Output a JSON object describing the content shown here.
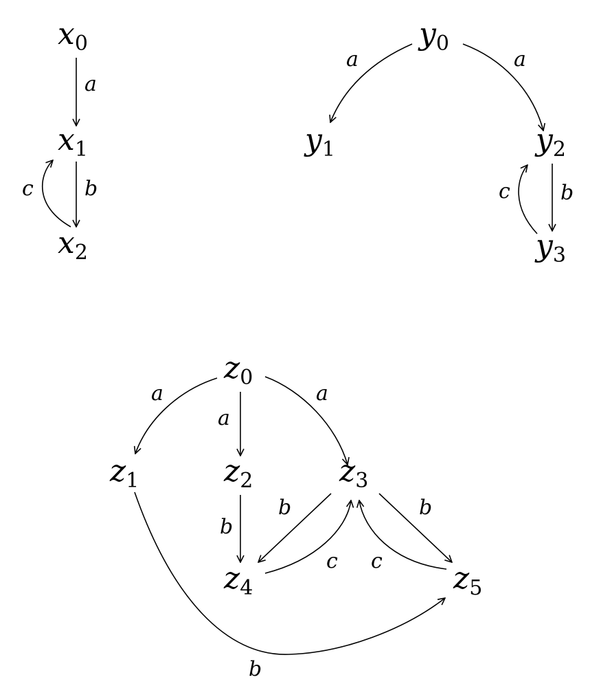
{
  "nodes": [
    {
      "id": "x0",
      "base": "x",
      "sub": "0"
    },
    {
      "id": "x1",
      "base": "x",
      "sub": "1"
    },
    {
      "id": "x2",
      "base": "x",
      "sub": "2"
    },
    {
      "id": "y0",
      "base": "y",
      "sub": "0"
    },
    {
      "id": "y1",
      "base": "y",
      "sub": "1"
    },
    {
      "id": "y2",
      "base": "y",
      "sub": "2"
    },
    {
      "id": "y3",
      "base": "y",
      "sub": "3"
    },
    {
      "id": "z0",
      "base": "z",
      "sub": "0"
    },
    {
      "id": "z1",
      "base": "z",
      "sub": "1"
    },
    {
      "id": "z2",
      "base": "z",
      "sub": "2"
    },
    {
      "id": "z3",
      "base": "z",
      "sub": "3"
    },
    {
      "id": "z4",
      "base": "z",
      "sub": "4"
    },
    {
      "id": "z5",
      "base": "z",
      "sub": "5"
    }
  ],
  "edges": [
    {
      "from": "x0",
      "to": "x1",
      "label": "a"
    },
    {
      "from": "x1",
      "to": "x2",
      "label": "b"
    },
    {
      "from": "x2",
      "to": "x1",
      "label": "c"
    },
    {
      "from": "y0",
      "to": "y1",
      "label": "a"
    },
    {
      "from": "y0",
      "to": "y2",
      "label": "a"
    },
    {
      "from": "y2",
      "to": "y3",
      "label": "b"
    },
    {
      "from": "y3",
      "to": "y2",
      "label": "c"
    },
    {
      "from": "z0",
      "to": "z1",
      "label": "a"
    },
    {
      "from": "z0",
      "to": "z2",
      "label": "a"
    },
    {
      "from": "z0",
      "to": "z3",
      "label": "a"
    },
    {
      "from": "z2",
      "to": "z4",
      "label": "b"
    },
    {
      "from": "z3",
      "to": "z4",
      "label": "b"
    },
    {
      "from": "z4",
      "to": "z3",
      "label": "c"
    },
    {
      "from": "z3",
      "to": "z5",
      "label": "b"
    },
    {
      "from": "z5",
      "to": "z3",
      "label": "c"
    },
    {
      "from": "z1",
      "to": "z5",
      "label": "b"
    }
  ]
}
